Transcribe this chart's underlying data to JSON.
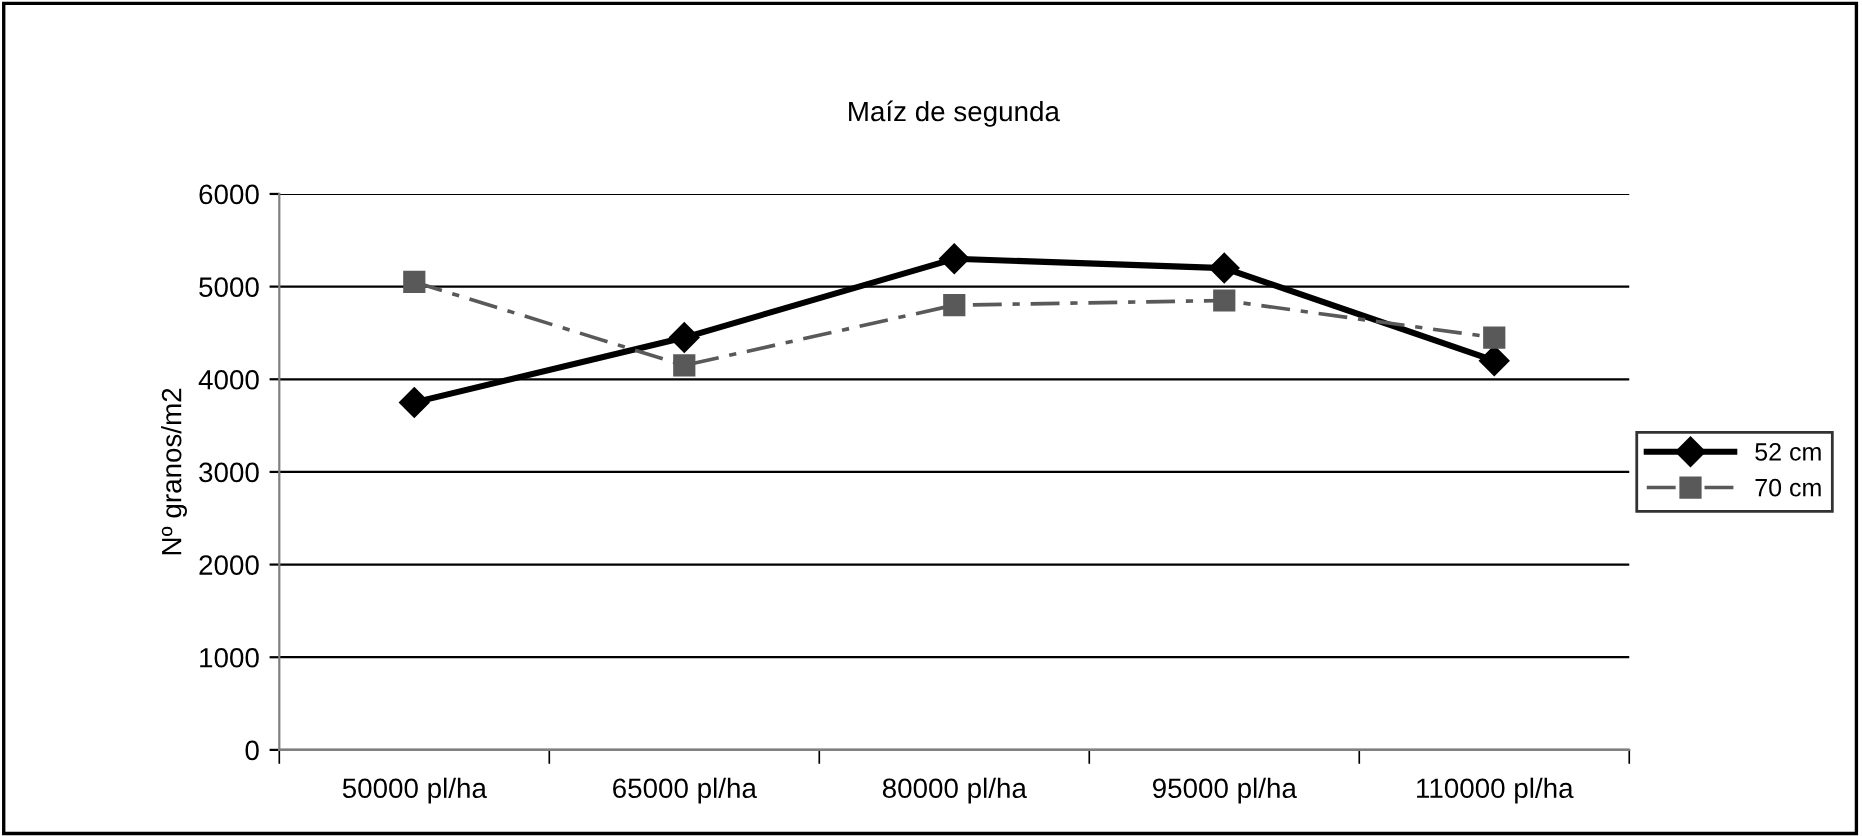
{
  "chart_data": {
    "type": "line",
    "title": "Maíz de segunda",
    "ylabel": "Nº granos/m2",
    "categories": [
      "50000 pl/ha",
      "65000 pl/ha",
      "80000 pl/ha",
      "95000 pl/ha",
      "110000 pl/ha"
    ],
    "series": [
      {
        "name": "52 cm",
        "color": "#000000",
        "marker": "diamond",
        "line_style": "solid",
        "values": [
          3750,
          4450,
          5300,
          5200,
          4200
        ]
      },
      {
        "name": "70 cm",
        "color": "#595959",
        "marker": "square",
        "line_style": "dashdot",
        "values": [
          5050,
          4150,
          4800,
          4850,
          4450
        ]
      }
    ],
    "ylim": [
      0,
      6000
    ],
    "yticks": [
      0,
      1000,
      2000,
      3000,
      4000,
      5000,
      6000
    ],
    "grid": "y",
    "legend": "right"
  }
}
